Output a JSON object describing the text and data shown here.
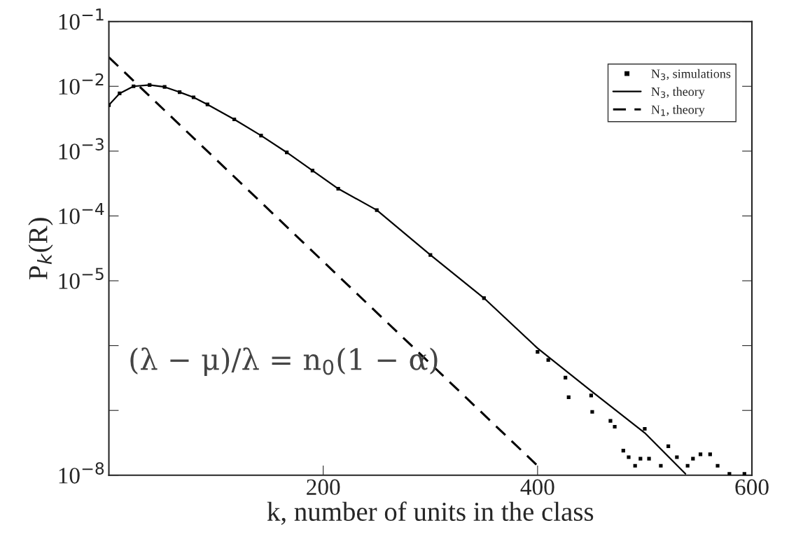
{
  "chart_data": {
    "type": "line",
    "xlabel": "k, number of units in the class",
    "ylabel": "P$_{k}$(R)",
    "log": "y",
    "xlim": [
      0,
      600
    ],
    "xticks": [
      200,
      400,
      600
    ],
    "ylim": [
      1e-08,
      0.1
    ],
    "yticks": [
      {
        "value": 0.1,
        "label": "10$^{−1}$"
      },
      {
        "value": 0.01,
        "label": "10$^{−2}$"
      },
      {
        "value": 0.001,
        "label": "10$^{−3}$"
      },
      {
        "value": 0.0001,
        "label": "10$^{−4}$"
      },
      {
        "value": 1e-05,
        "label": "10$^{−5}$"
      },
      {
        "value": 1e-06,
        "label": null
      },
      {
        "value": 1e-07,
        "label": null
      },
      {
        "value": 1e-08,
        "label": "10$^{−8}$"
      }
    ],
    "legend": "top right",
    "grid": false,
    "series": [
      {
        "name": "N$_{3}$, simulations",
        "type": "scatter",
        "marker": "square",
        "color": "#000000",
        "x": [
          0,
          10,
          23,
          38,
          52,
          66,
          79,
          92,
          117,
          142,
          166,
          190,
          214,
          250,
          300,
          350,
          400,
          410,
          426,
          429,
          450,
          451,
          468,
          472,
          480,
          485,
          491,
          496,
          500,
          504,
          515,
          522,
          530,
          540,
          545,
          552,
          561,
          568,
          579,
          593
        ],
        "values": [
          0.00513,
          0.00776,
          0.01,
          0.0105,
          0.00977,
          0.00813,
          0.00676,
          0.00525,
          0.00309,
          0.00174,
          0.000955,
          0.000501,
          0.000263,
          0.000123,
          2.5e-05,
          5.4e-06,
          8e-07,
          6e-07,
          3.2e-07,
          1.6e-07,
          1.7e-07,
          9.5e-08,
          6.9e-08,
          5.6e-08,
          2.4e-08,
          1.9e-08,
          1.4e-08,
          1.8e-08,
          5.2e-08,
          1.8e-08,
          1.4e-08,
          2.8e-08,
          1.9e-08,
          1.4e-08,
          1.8e-08,
          2.1e-08,
          2.1e-08,
          1.4e-08,
          1.05e-08,
          1.05e-08
        ]
      },
      {
        "name": "N$_{3}$, theory",
        "line_style": "solid",
        "color": "#000000",
        "x": [
          0,
          10,
          23,
          38,
          52,
          66,
          79,
          92,
          117,
          142,
          166,
          190,
          214,
          250,
          300,
          350,
          400,
          450,
          500,
          538
        ],
        "values": [
          0.00513,
          0.00776,
          0.01,
          0.0105,
          0.00977,
          0.00813,
          0.00676,
          0.00525,
          0.00309,
          0.00174,
          0.000955,
          0.000501,
          0.000263,
          0.000123,
          2.5e-05,
          5.4e-06,
          9.1e-07,
          2e-07,
          4.5e-08,
          1.05e-08
        ]
      },
      {
        "name": "N$_{1}$, theory",
        "line_style": "dashed",
        "color": "#000000",
        "x": [
          0,
          400
        ],
        "values": [
          0.028,
          1.4e-08
        ]
      }
    ],
    "annotations": [
      "(λ − μ)/λ = n$_{0}$(1 − α)"
    ]
  }
}
